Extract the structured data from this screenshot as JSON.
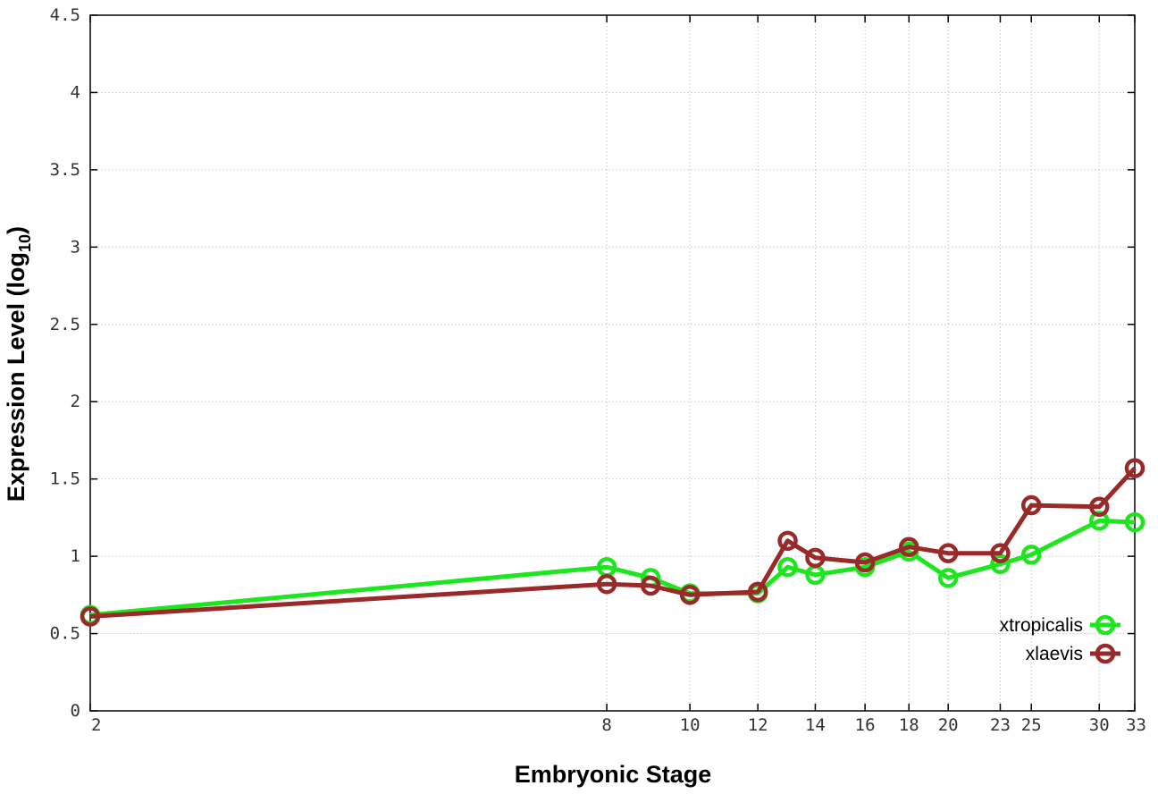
{
  "chart_data": {
    "type": "line",
    "title": "",
    "xlabel": "Embryonic Stage",
    "ylabel_main": "Expression Level (log",
    "ylabel_sub": "10",
    "ylabel_close": ")",
    "xlim": [
      2,
      33
    ],
    "ylim": [
      0,
      4.5
    ],
    "xscale": "log",
    "x_ticks": [
      2,
      8,
      10,
      12,
      14,
      16,
      18,
      20,
      23,
      25,
      30,
      33
    ],
    "x_tick_labels": [
      "2",
      "8",
      "10",
      "12",
      "14",
      "16",
      "18",
      "20",
      "23",
      "25",
      "30",
      "33"
    ],
    "y_ticks": [
      0,
      0.5,
      1,
      1.5,
      2,
      2.5,
      3,
      3.5,
      4,
      4.5
    ],
    "y_tick_labels": [
      "0",
      "0.5",
      "1",
      "1.5",
      "2",
      "2.5",
      "3",
      "3.5",
      "4",
      "4.5"
    ],
    "grid": true,
    "legend_position": "bottom-right",
    "x": [
      2,
      8,
      9,
      10,
      12,
      13,
      14,
      16,
      18,
      20,
      23,
      25,
      30,
      33
    ],
    "series": [
      {
        "name": "xtropicalis",
        "color": "#1ee61e",
        "values": [
          0.62,
          0.93,
          0.86,
          0.76,
          0.76,
          0.93,
          0.88,
          0.93,
          1.03,
          0.86,
          0.95,
          1.01,
          1.23,
          1.22
        ]
      },
      {
        "name": "xlaevis",
        "color": "#992a2a",
        "values": [
          0.61,
          0.82,
          0.81,
          0.75,
          0.77,
          1.1,
          0.99,
          0.96,
          1.06,
          1.02,
          1.02,
          1.33,
          1.32,
          1.57
        ]
      }
    ]
  }
}
